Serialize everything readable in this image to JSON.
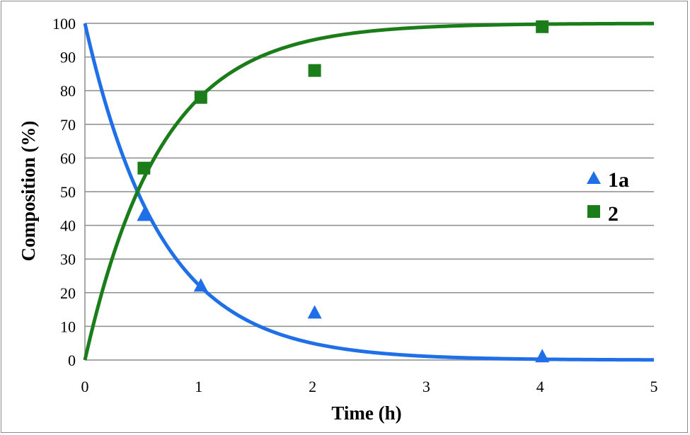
{
  "chart_data": {
    "type": "scatter",
    "xlabel": "Time (h)",
    "ylabel": "Composition (%)",
    "xlim": [
      0,
      5
    ],
    "ylim": [
      0,
      100
    ],
    "xticks": [
      "0",
      "1",
      "2",
      "3",
      "4",
      "5"
    ],
    "yticks": [
      "0",
      "10",
      "20",
      "30",
      "40",
      "50",
      "60",
      "70",
      "80",
      "90",
      "100"
    ],
    "grid": "horizontal",
    "legend_position": "right",
    "series": [
      {
        "name": "1a",
        "marker": "triangle",
        "color": "#1f6fe8",
        "points": [
          [
            0.5,
            43
          ],
          [
            1,
            22
          ],
          [
            2,
            14
          ],
          [
            4,
            1
          ]
        ],
        "fit": {
          "kind": "exponential-decay",
          "start": 100,
          "k": 1.5
        }
      },
      {
        "name": "2",
        "marker": "square",
        "color": "#1a7d1a",
        "points": [
          [
            0.5,
            57
          ],
          [
            1,
            78
          ],
          [
            2,
            86
          ],
          [
            4,
            99
          ]
        ],
        "fit": {
          "kind": "exponential-rise",
          "plateau": 100,
          "k": 1.5
        }
      }
    ]
  }
}
